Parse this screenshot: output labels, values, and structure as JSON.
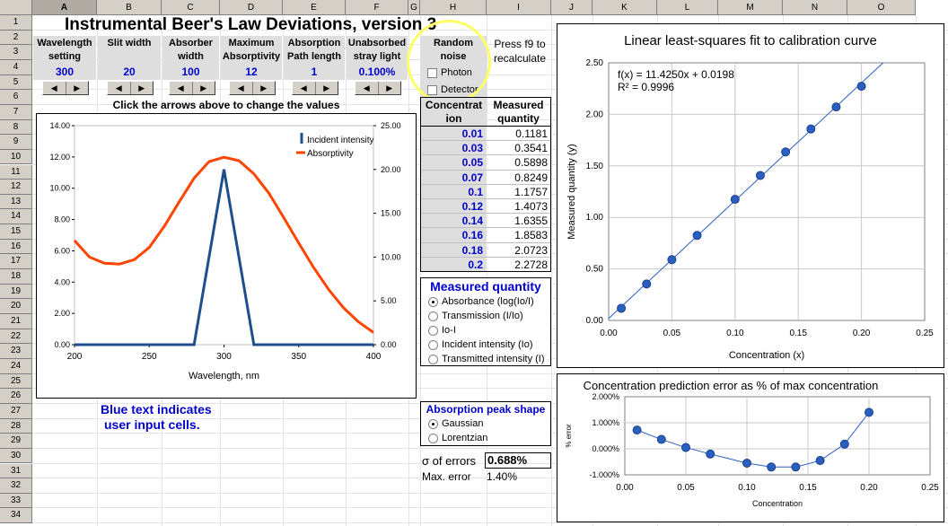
{
  "columns": [
    "A",
    "B",
    "C",
    "D",
    "E",
    "F",
    "G",
    "H",
    "I",
    "J",
    "K",
    "L",
    "M",
    "N",
    "O"
  ],
  "rows": [
    "1",
    "2",
    "3",
    "4",
    "5",
    "6",
    "7",
    "8",
    "9",
    "10",
    "11",
    "12",
    "13",
    "14",
    "15",
    "16",
    "17",
    "18",
    "19",
    "20",
    "21",
    "22",
    "23",
    "24",
    "25",
    "26",
    "27",
    "28",
    "29",
    "30",
    "31",
    "32",
    "33",
    "34"
  ],
  "title": "Instrumental Beer's Law Deviations, version 3",
  "params": [
    {
      "header": "Wavelength setting",
      "value": "300"
    },
    {
      "header": "Slit width",
      "value": "20"
    },
    {
      "header": "Absorber width",
      "value": "100"
    },
    {
      "header": "Maximum Absorptivity",
      "value": "12"
    },
    {
      "header": "Absorption Path length",
      "value": "1"
    },
    {
      "header": "Unabsorbed stray light",
      "value": "0.100%"
    }
  ],
  "noise": {
    "header": "Random noise",
    "photon": "Photon",
    "detector": "Detector"
  },
  "press_f9": "Press f9 to recalculate",
  "click_arrows": "Click the arrows above to change the values",
  "table": {
    "col1": "Concentration",
    "col2": "Measured quantity",
    "conc": [
      "0.01",
      "0.03",
      "0.05",
      "0.07",
      "0.1",
      "0.12",
      "0.14",
      "0.16",
      "0.18",
      "0.2"
    ],
    "meas": [
      "0.1181",
      "0.3541",
      "0.5898",
      "0.8249",
      "1.1757",
      "1.4073",
      "1.6355",
      "1.8583",
      "2.0723",
      "2.2728"
    ]
  },
  "measured_panel": {
    "title": "Measured quantity",
    "options": [
      "Absorbance (log(Io/I)",
      "Transmission (I/Io)",
      "Io-I",
      "Incident intensity (Io)",
      "Transmitted intensity (I)"
    ],
    "selected": 0
  },
  "peak_panel": {
    "title": "Absorption peak shape",
    "options": [
      "Gaussian",
      "Lorentzian"
    ],
    "selected": 0
  },
  "stats": {
    "sigma_label": "σ of errors",
    "sigma_value": "0.688%",
    "max_label": "Max. error",
    "max_value": "1.40%"
  },
  "note": [
    "Blue text indicates",
    "user input cells."
  ],
  "colors": {
    "incident": "#1f4e8c",
    "absorptivity": "#ff4500",
    "point": "#2a5fbf",
    "accent_circle": "#ffff66"
  },
  "chart_data": [
    {
      "type": "line",
      "xlabel": "Wavelength, nm",
      "xlim": [
        200,
        400
      ],
      "ylim_left": [
        0,
        14
      ],
      "ylim_right": [
        0,
        25
      ],
      "x_ticks": [
        "200",
        "250",
        "300",
        "350",
        "400"
      ],
      "y_ticks_left": [
        "0.00",
        "2.00",
        "4.00",
        "6.00",
        "8.00",
        "10.00",
        "12.00",
        "14.00"
      ],
      "y_ticks_right": [
        "0.00",
        "5.00",
        "10.00",
        "15.00",
        "20.00",
        "25.00"
      ],
      "legend": "top-right",
      "series": [
        {
          "name": "Incident intensity",
          "axis": "left",
          "x": [
            200,
            280,
            300,
            320,
            400
          ],
          "y": [
            0,
            0,
            11.2,
            0,
            0
          ]
        },
        {
          "name": "Absorptivity",
          "axis": "right",
          "x": [
            200,
            210,
            220,
            230,
            240,
            250,
            260,
            270,
            280,
            290,
            300,
            310,
            320,
            330,
            340,
            350,
            360,
            370,
            380,
            390,
            400
          ],
          "y": [
            11.9,
            10.0,
            9.3,
            9.2,
            9.7,
            11.1,
            13.5,
            16.3,
            19.0,
            20.9,
            21.4,
            21.0,
            19.5,
            17.3,
            14.5,
            11.6,
            8.8,
            6.3,
            4.2,
            2.6,
            1.4
          ]
        }
      ]
    },
    {
      "type": "scatter",
      "title": "Linear least-squares fit to calibration curve",
      "xlabel": "Concentration (x)",
      "ylabel": "Measured quantity (y)",
      "xlim": [
        0,
        0.25
      ],
      "ylim": [
        0,
        2.5
      ],
      "x_ticks": [
        "0.00",
        "0.05",
        "0.10",
        "0.15",
        "0.20",
        "0.25"
      ],
      "y_ticks": [
        "0.00",
        "0.50",
        "1.00",
        "1.50",
        "2.00",
        "2.50"
      ],
      "fit_label": "f(x) = 11.4250x + 0.0198",
      "r2_label": "R² = 0.9996",
      "fit": {
        "slope": 11.425,
        "intercept": 0.0198
      },
      "x": [
        0.01,
        0.03,
        0.05,
        0.07,
        0.1,
        0.12,
        0.14,
        0.16,
        0.18,
        0.2
      ],
      "y": [
        0.1181,
        0.3541,
        0.5898,
        0.8249,
        1.1757,
        1.4073,
        1.6355,
        1.8583,
        2.0723,
        2.2728
      ]
    },
    {
      "type": "line",
      "title": "Concentration prediction error as % of max concentration",
      "xlabel": "Concentration",
      "ylabel": "% error",
      "xlim": [
        0,
        0.25
      ],
      "ylim": [
        -1,
        2
      ],
      "x_ticks": [
        "0.00",
        "0.05",
        "0.10",
        "0.15",
        "0.20",
        "0.25"
      ],
      "y_ticks": [
        "-1.000%",
        "0.000%",
        "1.000%",
        "2.000%"
      ],
      "x": [
        0.01,
        0.03,
        0.05,
        0.07,
        0.1,
        0.12,
        0.14,
        0.16,
        0.18,
        0.2
      ],
      "y": [
        0.72,
        0.36,
        0.05,
        -0.2,
        -0.55,
        -0.7,
        -0.7,
        -0.45,
        0.18,
        1.4
      ]
    }
  ]
}
